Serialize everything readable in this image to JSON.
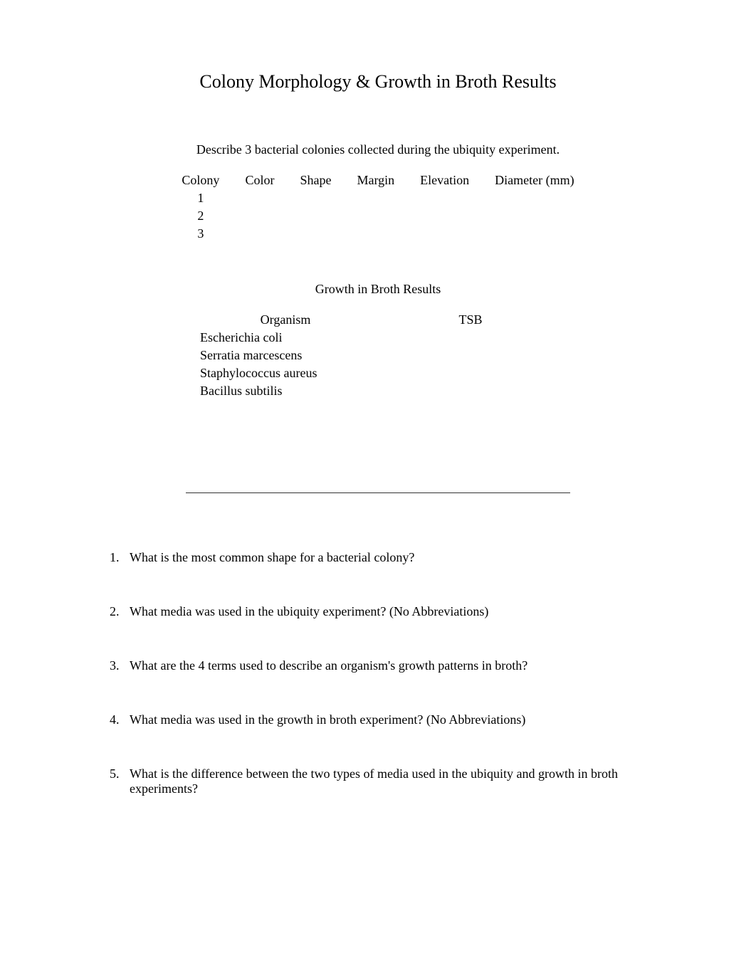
{
  "title": "Colony Morphology & Growth in Broth Results",
  "colony_section": {
    "instruction": "Describe 3 bacterial colonies collected during the ubiquity experiment.",
    "headers": {
      "colony": "Colony",
      "color": "Color",
      "shape": "Shape",
      "margin": "Margin",
      "elevation": "Elevation",
      "diameter": "Diameter (mm)"
    },
    "rows": [
      {
        "num": "1",
        "color": "",
        "shape": "",
        "margin": "",
        "elevation": "",
        "diameter": ""
      },
      {
        "num": "2",
        "color": "",
        "shape": "",
        "margin": "",
        "elevation": "",
        "diameter": ""
      },
      {
        "num": "3",
        "color": "",
        "shape": "",
        "margin": "",
        "elevation": "",
        "diameter": ""
      }
    ]
  },
  "broth_section": {
    "heading": "Growth in Broth Results",
    "headers": {
      "organism": "Organism",
      "tsb": "TSB"
    },
    "rows": [
      {
        "organism": "Escherichia coli",
        "tsb": ""
      },
      {
        "organism": "Serratia marcescens",
        "tsb": ""
      },
      {
        "organism": "Staphylococcus aureus",
        "tsb": ""
      },
      {
        "organism": "Bacillus subtilis",
        "tsb": ""
      }
    ]
  },
  "questions": {
    "q1": "What is the most common shape for a bacterial colony?",
    "q2": "What media was used in the ubiquity experiment? (No Abbreviations)",
    "q3": "What are the 4 terms used to describe an organism's growth patterns in broth?",
    "q4": "What media was used in the growth in broth experiment? (No Abbreviations)",
    "q5": "What is the difference between the two types of media used in the ubiquity and growth in broth experiments?"
  },
  "colors": {
    "text": "#000000",
    "background": "#ffffff",
    "divider": "#333333"
  },
  "typography": {
    "font_family": "Times New Roman",
    "title_fontsize": 26,
    "body_fontsize": 18
  }
}
